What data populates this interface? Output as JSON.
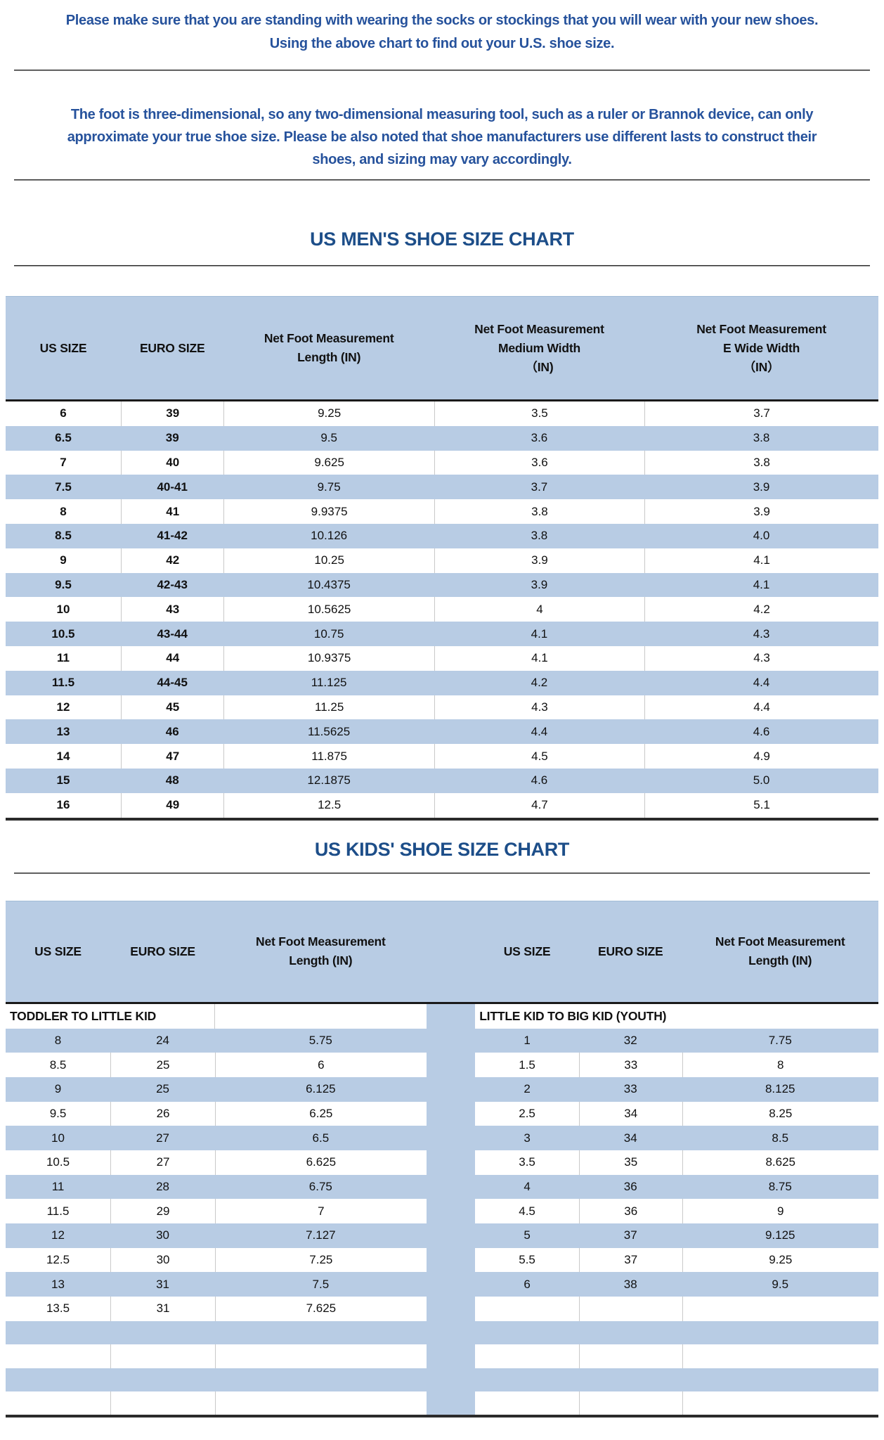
{
  "notes": {
    "note1_lines": [
      "Please make sure that you are standing with wearing the socks or stockings that you will wear with your new shoes.",
      "Using the above chart to find out your U.S. shoe size."
    ],
    "note2_lines": [
      "The foot is three-dimensional, so any two-dimensional measuring tool, such as a ruler or Brannok device, can only",
      "approximate your true shoe size. Please be also noted that shoe manufacturers use different lasts to construct their",
      "shoes, and sizing may vary accordingly."
    ]
  },
  "mens_chart": {
    "title": "US MEN'S SHOE SIZE CHART",
    "column_lines": [
      [
        "US SIZE"
      ],
      [
        "EURO SIZE"
      ],
      [
        "Net Foot Measurement",
        "Length (IN)"
      ],
      [
        "Net Foot Measurement",
        "Medium Width",
        "（IN)"
      ],
      [
        "Net Foot Measurement",
        "E Wide Width",
        "（IN）"
      ]
    ],
    "rows": [
      [
        "6",
        "39",
        "9.25",
        "3.5",
        "3.7"
      ],
      [
        "6.5",
        "39",
        "9.5",
        "3.6",
        "3.8"
      ],
      [
        "7",
        "40",
        "9.625",
        "3.6",
        "3.8"
      ],
      [
        "7.5",
        "40-41",
        "9.75",
        "3.7",
        "3.9"
      ],
      [
        "8",
        "41",
        "9.9375",
        "3.8",
        "3.9"
      ],
      [
        "8.5",
        "41-42",
        "10.126",
        "3.8",
        "4.0"
      ],
      [
        "9",
        "42",
        "10.25",
        "3.9",
        "4.1"
      ],
      [
        "9.5",
        "42-43",
        "10.4375",
        "3.9",
        "4.1"
      ],
      [
        "10",
        "43",
        "10.5625",
        "4",
        "4.2"
      ],
      [
        "10.5",
        "43-44",
        "10.75",
        "4.1",
        "4.3"
      ],
      [
        "11",
        "44",
        "10.9375",
        "4.1",
        "4.3"
      ],
      [
        "11.5",
        "44-45",
        "11.125",
        "4.2",
        "4.4"
      ],
      [
        "12",
        "45",
        "11.25",
        "4.3",
        "4.4"
      ],
      [
        "13",
        "46",
        "11.5625",
        "4.4",
        "4.6"
      ],
      [
        "14",
        "47",
        "11.875",
        "4.5",
        "4.9"
      ],
      [
        "15",
        "48",
        "12.1875",
        "4.6",
        "5.0"
      ],
      [
        "16",
        "49",
        "12.5",
        "4.7",
        "5.1"
      ]
    ]
  },
  "kids_chart": {
    "title": "US KIDS' SHOE SIZE CHART",
    "column_lines": [
      [
        "US SIZE"
      ],
      [
        "EURO SIZE"
      ],
      [
        "Net Foot Measurement",
        "Length (IN)"
      ],
      [
        "US SIZE"
      ],
      [
        "EURO SIZE"
      ],
      [
        "Net Foot Measurement",
        "Length (IN)"
      ]
    ],
    "left_section_label": "TODDLER TO LITTLE KID",
    "right_section_label": "LITTLE KID TO BIG KID (YOUTH)",
    "left_rows": [
      [
        "8",
        "24",
        "5.75"
      ],
      [
        "8.5",
        "25",
        "6"
      ],
      [
        "9",
        "25",
        "6.125"
      ],
      [
        "9.5",
        "26",
        "6.25"
      ],
      [
        "10",
        "27",
        "6.5"
      ],
      [
        "10.5",
        "27",
        "6.625"
      ],
      [
        "11",
        "28",
        "6.75"
      ],
      [
        "11.5",
        "29",
        "7"
      ],
      [
        "12",
        "30",
        "7.127"
      ],
      [
        "12.5",
        "30",
        "7.25"
      ],
      [
        "13",
        "31",
        "7.5"
      ],
      [
        "13.5",
        "31",
        "7.625"
      ]
    ],
    "right_rows": [
      [
        "1",
        "32",
        "7.75"
      ],
      [
        "1.5",
        "33",
        "8"
      ],
      [
        "2",
        "33",
        "8.125"
      ],
      [
        "2.5",
        "34",
        "8.25"
      ],
      [
        "3",
        "34",
        "8.5"
      ],
      [
        "3.5",
        "35",
        "8.625"
      ],
      [
        "4",
        "36",
        "8.75"
      ],
      [
        "4.5",
        "36",
        "9"
      ],
      [
        "5",
        "37",
        "9.125"
      ],
      [
        "5.5",
        "37",
        "9.25"
      ],
      [
        "6",
        "38",
        "9.5"
      ],
      [
        "",
        "",
        ""
      ]
    ],
    "trailing_empty_rows": 4
  },
  "colors": {
    "band_blue": "#b8cce4",
    "title_blue": "#1d4e89",
    "note_blue": "#26529c",
    "grid_gray": "#c9c9c9",
    "line_dark": "#2b2b2b"
  }
}
